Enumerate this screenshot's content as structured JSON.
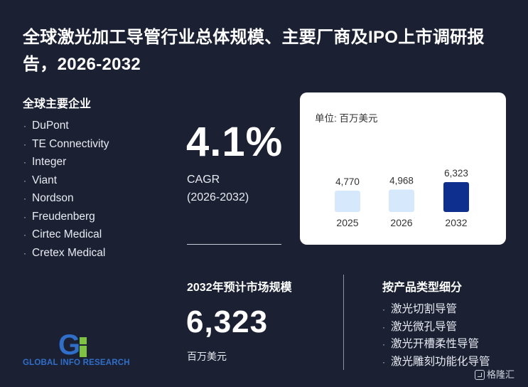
{
  "title": "全球激光加工导管行业总体规模、主要厂商及IPO上市调研报告，2026-2032",
  "companies": {
    "heading": "全球主要企业",
    "items": [
      "DuPont",
      "TE Connectivity",
      "Integer",
      "Viant",
      "Nordson",
      "Freudenberg",
      "Cirtec Medical",
      "Cretex Medical"
    ]
  },
  "cagr": {
    "value": "4.1%",
    "label": "CAGR",
    "period": "(2026-2032)"
  },
  "market_size": {
    "heading": "2032年预计市场规模",
    "value": "6,323",
    "unit": "百万美元"
  },
  "segments": {
    "heading": "按产品类型细分",
    "items": [
      "激光切割导管",
      "激光微孔导管",
      "激光开槽柔性导管",
      "激光雕刻功能化导管"
    ]
  },
  "chart_data": {
    "type": "bar",
    "unit_label": "单位: 百万美元",
    "categories": [
      "2025",
      "2026",
      "2032"
    ],
    "values": [
      4770,
      4968,
      6323
    ],
    "value_labels": [
      "4,770",
      "4,968",
      "6,323"
    ],
    "bar_colors": [
      "#d6e8fb",
      "#d6e8fb",
      "#0f2f8f"
    ]
  },
  "logo": {
    "caption": "GLOBAL INFO RESEARCH",
    "mark": "Gi"
  },
  "brand": {
    "label": "格隆汇"
  },
  "colors": {
    "background": "#1b2033",
    "accent_dark_blue": "#0f2f8f",
    "light_bar": "#d6e8fb",
    "logo_blue": "#2f6fc9",
    "logo_green": "#7dc242"
  }
}
